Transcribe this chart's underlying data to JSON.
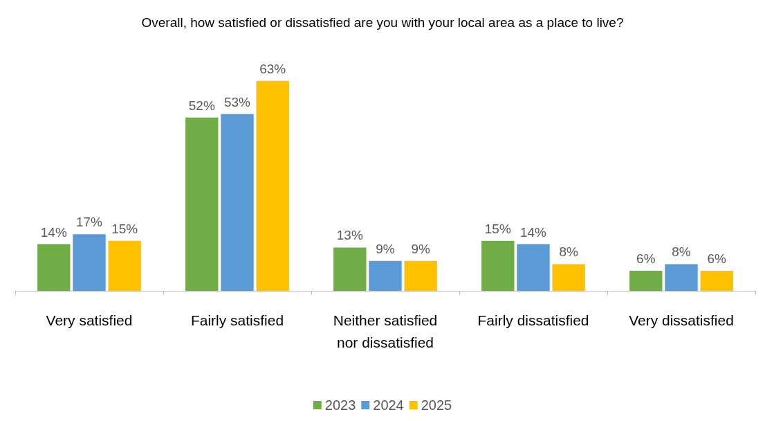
{
  "chart_data": {
    "type": "bar",
    "title": "Overall, how satisfied or dissatisfied are you with your local area as a place to live?",
    "categories": [
      "Very satisfied",
      "Fairly satisfied",
      "Neither satisfied\nnor dissatisfied",
      "Fairly dissatisfied",
      "Very dissatisfied"
    ],
    "series": [
      {
        "name": "2023",
        "color": "#70ad47",
        "values": [
          14,
          52,
          13,
          15,
          6
        ],
        "value_labels": [
          "14%",
          "52%",
          "13%",
          "15%",
          "6%"
        ]
      },
      {
        "name": "2024",
        "color": "#5b9bd5",
        "values": [
          17,
          53,
          9,
          14,
          8
        ],
        "value_labels": [
          "17%",
          "53%",
          "9%",
          "14%",
          "8%"
        ]
      },
      {
        "name": "2025",
        "color": "#ffc000",
        "values": [
          15,
          63,
          9,
          8,
          6
        ],
        "value_labels": [
          "15%",
          "63%",
          "9%",
          "8%",
          "6%"
        ]
      }
    ],
    "legend": "bottom",
    "grid": false
  }
}
